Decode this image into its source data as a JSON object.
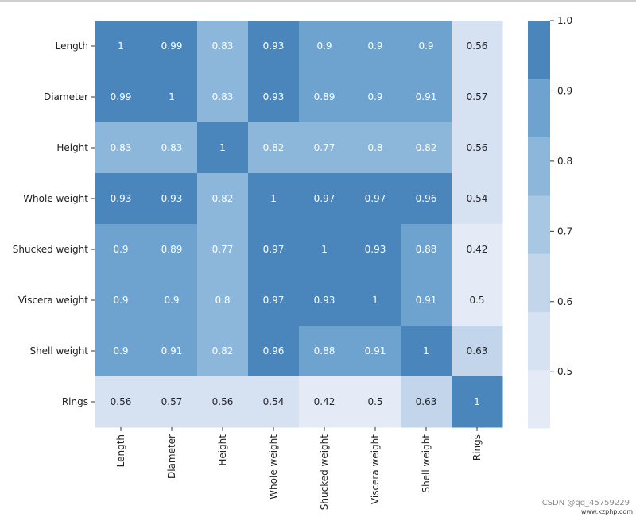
{
  "chart_data": {
    "type": "heatmap",
    "title": "",
    "xlabel": "",
    "ylabel": "",
    "labels": [
      "Length",
      "Diameter",
      "Height",
      "Whole weight",
      "Shucked weight",
      "Viscera weight",
      "Shell weight",
      "Rings"
    ],
    "values": [
      [
        1,
        0.99,
        0.83,
        0.93,
        0.9,
        0.9,
        0.9,
        0.56
      ],
      [
        0.99,
        1,
        0.83,
        0.93,
        0.89,
        0.9,
        0.91,
        0.57
      ],
      [
        0.83,
        0.83,
        1,
        0.82,
        0.77,
        0.8,
        0.82,
        0.56
      ],
      [
        0.93,
        0.93,
        0.82,
        1,
        0.97,
        0.97,
        0.96,
        0.54
      ],
      [
        0.9,
        0.89,
        0.77,
        0.97,
        1,
        0.93,
        0.88,
        0.42
      ],
      [
        0.9,
        0.9,
        0.8,
        0.97,
        0.93,
        1,
        0.91,
        0.5
      ],
      [
        0.9,
        0.91,
        0.82,
        0.96,
        0.88,
        0.91,
        1,
        0.63
      ],
      [
        0.56,
        0.57,
        0.56,
        0.54,
        0.42,
        0.5,
        0.63,
        1
      ]
    ],
    "vmin": 0.42,
    "vmax": 1.0,
    "colorbar_ticks": [
      "0.5",
      "0.6",
      "0.7",
      "0.8",
      "0.9",
      "1.0"
    ],
    "colors": {
      "low": "#e4ebf6",
      "high": "#4a86bb",
      "bins": [
        "#e4ebf6",
        "#d6e1f1",
        "#c2d5ea",
        "#a8c7e2",
        "#8db7da",
        "#6da3ce",
        "#4a86bb"
      ],
      "text_dark": "#262626",
      "text_light": "#ffffff"
    }
  },
  "watermark": {
    "line1": "CSDN @qq_45759229",
    "line2": "www.kzphp.com"
  }
}
